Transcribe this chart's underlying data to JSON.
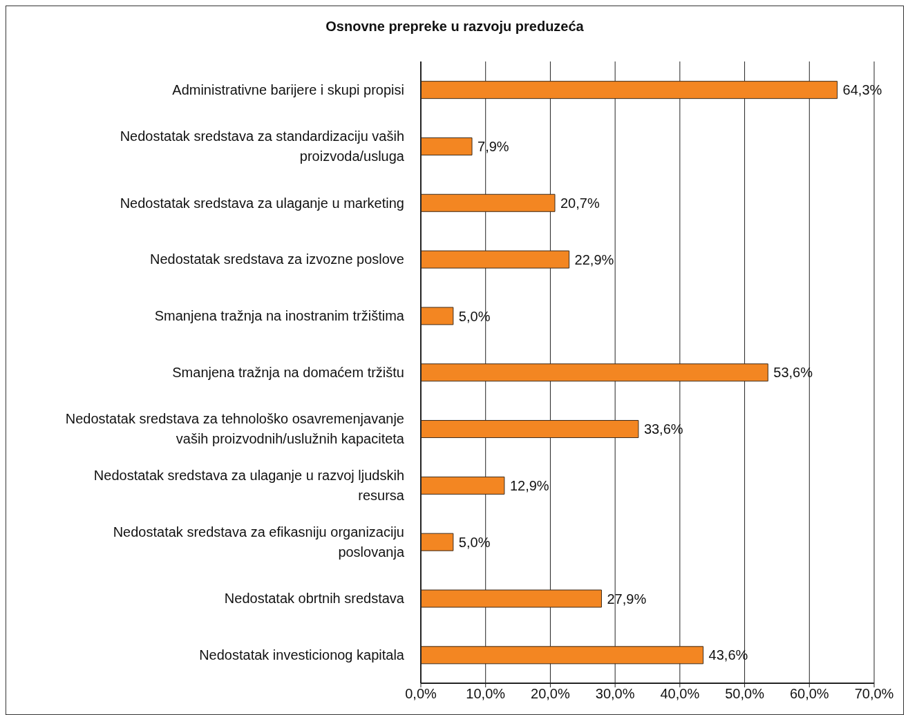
{
  "chart_data": {
    "type": "bar",
    "orientation": "horizontal",
    "title": "Osnovne prepreke u razvoju preduzeća",
    "categories": [
      "Administrativne barijere i skupi propisi",
      "Nedostatak sredstava za standardizaciju vaših proizvoda/usluga",
      "Nedostatak sredstava za ulaganje u marketing",
      "Nedostatak sredstava za izvozne poslove",
      "Smanjena tražnja na inostranim tržištima",
      "Smanjena tražnja na domaćem tržištu",
      "Nedostatak sredstava za tehnološko osavremenjavanje vaših proizvodnih/uslužnih kapaciteta",
      "Nedostatak sredstava za ulaganje u razvoj ljudskih resursa",
      "Nedostatak sredstava za efikasniju organizaciju poslovanja",
      "Nedostatak obrtnih sredstava",
      "Nedostatak investicionog kapitala"
    ],
    "values": [
      64.3,
      7.9,
      20.7,
      22.9,
      5.0,
      53.6,
      33.6,
      12.9,
      5.0,
      27.9,
      43.6
    ],
    "value_labels": [
      "64,3%",
      "7,9%",
      "20,7%",
      "22,9%",
      "5,0%",
      "53,6%",
      "33,6%",
      "12,9%",
      "5,0%",
      "27,9%",
      "43,6%"
    ],
    "color": "#f38622",
    "xlim": [
      0,
      70
    ],
    "xticks": [
      {
        "value": 0,
        "label": "0,0%"
      },
      {
        "value": 10,
        "label": "10,0%"
      },
      {
        "value": 20,
        "label": "20,0%"
      },
      {
        "value": 30,
        "label": "30,0%"
      },
      {
        "value": 40,
        "label": "40,0%"
      },
      {
        "value": 50,
        "label": "50,0%"
      },
      {
        "value": 60,
        "label": "60,0%"
      },
      {
        "value": 70,
        "label": "70,0%"
      }
    ],
    "grid": "x"
  }
}
